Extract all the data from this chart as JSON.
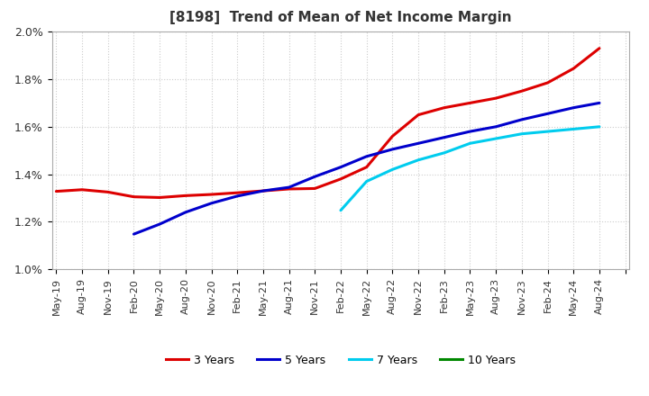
{
  "title": "[8198]  Trend of Mean of Net Income Margin",
  "ylim": [
    0.01,
    0.02
  ],
  "yticks": [
    0.01,
    0.012,
    0.014,
    0.016,
    0.018,
    0.02
  ],
  "ytick_labels": [
    "1.0%",
    "1.2%",
    "1.4%",
    "1.6%",
    "1.8%",
    "2.0%"
  ],
  "background_color": "#ffffff",
  "grid_color": "#cccccc",
  "series": {
    "3years": {
      "color": "#dd0000",
      "label": "3 Years",
      "x": [
        0,
        3,
        6,
        9,
        12,
        15,
        18,
        21,
        24,
        27,
        30,
        33,
        36,
        39,
        42,
        45,
        48,
        51,
        54,
        57,
        60,
        63
      ],
      "y": [
        0.01328,
        0.01335,
        0.01325,
        0.01305,
        0.01302,
        0.0131,
        0.01315,
        0.01322,
        0.0133,
        0.01338,
        0.0134,
        0.0138,
        0.0143,
        0.0156,
        0.0165,
        0.0168,
        0.017,
        0.0172,
        0.0175,
        0.01785,
        0.01845,
        0.0193
      ]
    },
    "5years": {
      "color": "#0000cc",
      "label": "5 Years",
      "x": [
        9,
        12,
        15,
        18,
        21,
        24,
        27,
        30,
        33,
        36,
        39,
        42,
        45,
        48,
        51,
        54,
        57,
        60,
        63
      ],
      "y": [
        0.01148,
        0.0119,
        0.0124,
        0.01278,
        0.01308,
        0.0133,
        0.01345,
        0.0139,
        0.0143,
        0.01475,
        0.01505,
        0.0153,
        0.01555,
        0.0158,
        0.016,
        0.0163,
        0.01655,
        0.0168,
        0.017
      ]
    },
    "7years": {
      "color": "#00ccee",
      "label": "7 Years",
      "x": [
        33,
        36,
        39,
        42,
        45,
        48,
        51,
        54,
        57,
        60,
        63
      ],
      "y": [
        0.01248,
        0.0137,
        0.0142,
        0.0146,
        0.0149,
        0.0153,
        0.0155,
        0.0157,
        0.0158,
        0.0159,
        0.016
      ]
    },
    "10years": {
      "color": "#008800",
      "label": "10 Years",
      "x": [],
      "y": []
    }
  },
  "xtick_positions": [
    0,
    3,
    6,
    9,
    12,
    15,
    18,
    21,
    24,
    27,
    30,
    33,
    36,
    39,
    42,
    45,
    48,
    51,
    54,
    57,
    60,
    63,
    66
  ],
  "xtick_labels": [
    "May-19",
    "Aug-19",
    "Nov-19",
    "Feb-20",
    "May-20",
    "Aug-20",
    "Nov-20",
    "Feb-21",
    "May-21",
    "Aug-21",
    "Nov-21",
    "Feb-22",
    "May-22",
    "Aug-22",
    "Nov-22",
    "Feb-23",
    "May-23",
    "Aug-23",
    "Nov-23",
    "Feb-24",
    "May-24",
    "Aug-24",
    ""
  ],
  "legend_entries": [
    "3 Years",
    "5 Years",
    "7 Years",
    "10 Years"
  ],
  "legend_colors": [
    "#dd0000",
    "#0000cc",
    "#00ccee",
    "#008800"
  ]
}
